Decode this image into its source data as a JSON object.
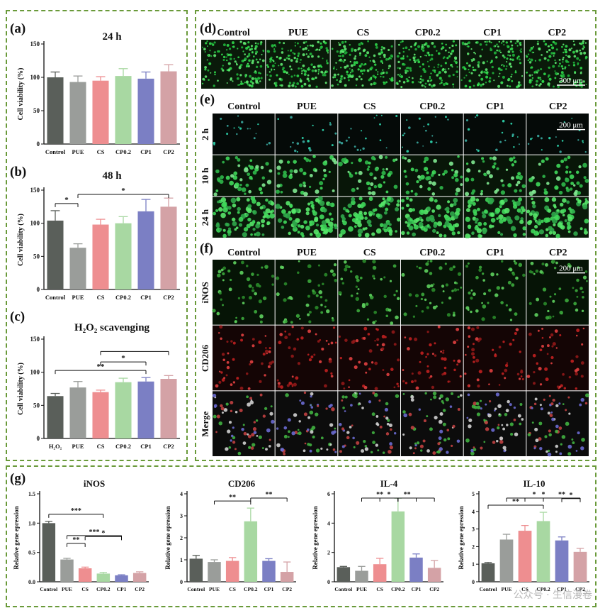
{
  "panel_labels": {
    "a": "(a)",
    "b": "(b)",
    "c": "(c)",
    "d": "(d)",
    "e": "(e)",
    "f": "(f)",
    "g": "(g)"
  },
  "colors": {
    "frame": "#6a9a3a",
    "bar_colors": [
      "#5a5f5a",
      "#9a9d9a",
      "#ee8e90",
      "#a8d8a2",
      "#7b7fc4",
      "#d4a2a6"
    ]
  },
  "chart_data": [
    {
      "id": "a",
      "type": "bar",
      "title": "24 h",
      "ylabel": "Cell viability (%)",
      "ylim": [
        0,
        150
      ],
      "yticks": [
        0,
        50,
        100,
        150
      ],
      "categories": [
        "Control",
        "PUE",
        "CS",
        "CP0.2",
        "CP1",
        "CP2"
      ],
      "values": [
        100,
        93,
        95,
        102,
        98,
        109
      ],
      "errors": [
        8,
        9,
        6,
        11,
        10,
        10
      ],
      "annotations": []
    },
    {
      "id": "b",
      "type": "bar",
      "title": "48 h",
      "ylabel": "Cell viability (%)",
      "ylim": [
        0,
        150
      ],
      "yticks": [
        0,
        50,
        100,
        150
      ],
      "categories": [
        "Control",
        "PUE",
        "CS",
        "CP0.2",
        "CP1",
        "CP2"
      ],
      "values": [
        104,
        63,
        98,
        100,
        118,
        125
      ],
      "errors": [
        15,
        6,
        8,
        10,
        18,
        13
      ],
      "annotations": [
        {
          "from": 0,
          "to": 1,
          "label": "*"
        },
        {
          "from": 1,
          "to": 5,
          "label": "*"
        }
      ]
    },
    {
      "id": "c",
      "type": "bar",
      "title": "H₂O₂ scavenging",
      "ylabel": "Cell viability (%)",
      "ylim": [
        0,
        150
      ],
      "yticks": [
        0,
        50,
        100,
        150
      ],
      "categories": [
        "H₂O₂",
        "PUE",
        "CS",
        "CP0.2",
        "CP1",
        "CP2"
      ],
      "values": [
        64,
        77,
        70,
        85,
        86,
        90
      ],
      "errors": [
        4,
        9,
        3,
        6,
        6,
        5
      ],
      "annotations": [
        {
          "from": 0,
          "to": 4,
          "label": "**"
        },
        {
          "from": 2,
          "to": 4,
          "label": "*"
        },
        {
          "from": 2,
          "to": 5,
          "label": ""
        }
      ]
    },
    {
      "id": "g1",
      "type": "bar",
      "title": "iNOS",
      "ylabel": "Relative gene epression",
      "ylim": [
        0,
        1.5
      ],
      "yticks": [
        0.0,
        0.5,
        1.0,
        1.5
      ],
      "categories": [
        "Control",
        "PUE",
        "CS",
        "CP0.2",
        "CP1",
        "CP2"
      ],
      "values": [
        1.0,
        0.38,
        0.23,
        0.14,
        0.11,
        0.15
      ],
      "errors": [
        0.03,
        0.02,
        0.02,
        0.02,
        0.01,
        0.02
      ],
      "annotations": [
        {
          "from": 0,
          "to": 3,
          "label": "***"
        },
        {
          "from": 1,
          "to": 2,
          "label": "**"
        },
        {
          "from": 1,
          "to": 4,
          "label": "***"
        },
        {
          "from": 2,
          "to": 4,
          "label": "*"
        }
      ]
    },
    {
      "id": "g2",
      "type": "bar",
      "title": "CD206",
      "ylabel": "Relative gene epression",
      "ylim": [
        0,
        4
      ],
      "yticks": [
        0,
        1,
        2,
        3,
        4
      ],
      "categories": [
        "Control",
        "PUE",
        "CS",
        "CP0.2",
        "CP1",
        "CP2"
      ],
      "values": [
        1.05,
        0.9,
        0.95,
        2.75,
        0.95,
        0.45
      ],
      "errors": [
        0.15,
        0.1,
        0.15,
        0.6,
        0.1,
        0.45
      ],
      "annotations": [
        {
          "from": 1,
          "to": 3,
          "label": "**"
        },
        {
          "from": 3,
          "to": 5,
          "label": "**"
        }
      ]
    },
    {
      "id": "g3",
      "type": "bar",
      "title": "IL-4",
      "ylabel": "Relative gene epression",
      "ylim": [
        0,
        6
      ],
      "yticks": [
        0,
        2,
        4,
        6
      ],
      "categories": [
        "Control",
        "PUE",
        "CS",
        "CP0.2",
        "CP1",
        "CP2"
      ],
      "values": [
        1.0,
        0.75,
        1.2,
        4.8,
        1.65,
        0.95
      ],
      "errors": [
        0.05,
        0.3,
        0.4,
        0.9,
        0.25,
        0.5
      ],
      "annotations": [
        {
          "from": 1,
          "to": 3,
          "label": "**"
        },
        {
          "from": 2,
          "to": 3,
          "label": "*"
        },
        {
          "from": 3,
          "to": 4,
          "label": "**"
        },
        {
          "from": 3,
          "to": 5,
          "label": ""
        }
      ]
    },
    {
      "id": "g4",
      "type": "bar",
      "title": "IL-10",
      "ylabel": "Relative gene epression",
      "ylim": [
        0,
        5
      ],
      "yticks": [
        0,
        1,
        2,
        3,
        4,
        5
      ],
      "categories": [
        "Control",
        "PUE",
        "CS",
        "CP0.2",
        "CP1",
        "CP2"
      ],
      "values": [
        1.05,
        2.4,
        2.9,
        3.45,
        2.35,
        1.7
      ],
      "errors": [
        0.05,
        0.3,
        0.3,
        0.5,
        0.2,
        0.2
      ],
      "annotations": [
        {
          "from": 0,
          "to": 3,
          "label": "**"
        },
        {
          "from": 1,
          "to": 4,
          "label": "*"
        },
        {
          "from": 2,
          "to": 4,
          "label": "*"
        },
        {
          "from": 3,
          "to": 5,
          "label": "**"
        },
        {
          "from": 4,
          "to": 5,
          "label": "*"
        }
      ]
    }
  ],
  "micro_d": {
    "columns": [
      "Control",
      "PUE",
      "CS",
      "CP0.2",
      "CP1",
      "CP2"
    ],
    "scale_bar": "300 μm"
  },
  "micro_e": {
    "columns": [
      "Control",
      "PUE",
      "CS",
      "CP0.2",
      "CP1",
      "CP2"
    ],
    "rows": [
      "2 h",
      "10 h",
      "24 h"
    ],
    "scale_bar": "200 μm"
  },
  "micro_f": {
    "columns": [
      "Control",
      "PUE",
      "CS",
      "CP0.2",
      "CP1",
      "CP2"
    ],
    "rows": [
      "iNOS",
      "CD206",
      "Merge"
    ],
    "scale_bar": "200 μm"
  },
  "watermark": "公众号 · 生信漫卷"
}
